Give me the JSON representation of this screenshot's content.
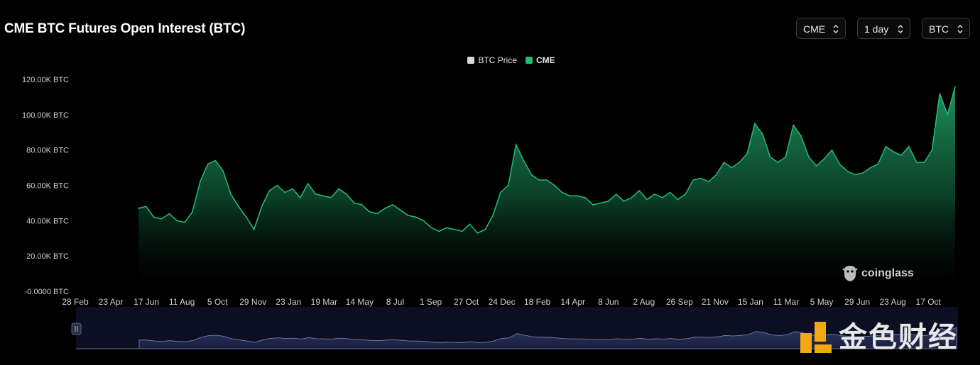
{
  "header": {
    "title": "CME BTC Futures Open Interest (BTC)",
    "exchange_select": "CME",
    "interval_select": "1 day",
    "unit_select": "BTC"
  },
  "legend": [
    {
      "label": "BTC Price",
      "color": "#d9d9d9"
    },
    {
      "label": "CME",
      "color": "#1fbf75"
    }
  ],
  "watermarks": {
    "coinglass": "coinglass",
    "jinse": "金色财经"
  },
  "colors": {
    "background": "#000000",
    "accent": "#1fbf75",
    "navigator_fill": "#2c3358"
  },
  "chart_data": {
    "type": "area",
    "title": "CME BTC Futures Open Interest (BTC)",
    "series": [
      {
        "name": "CME",
        "values": [
          47,
          48,
          42,
          41,
          44,
          40,
          39,
          45,
          62,
          72,
          74,
          68,
          55,
          48,
          42,
          35,
          48,
          57,
          60,
          56,
          58,
          53,
          61,
          55,
          54,
          53,
          58,
          55,
          50,
          49,
          45,
          44,
          47,
          49,
          46,
          43,
          42,
          40,
          36,
          34,
          36,
          35,
          34,
          38,
          33,
          35,
          43,
          56,
          60,
          83,
          74,
          66,
          63,
          63,
          60,
          56,
          54,
          54,
          53,
          49,
          50,
          51,
          55,
          51,
          53,
          57,
          52,
          55,
          53,
          56,
          52,
          55,
          63,
          64,
          62,
          66,
          73,
          70,
          73,
          78,
          95,
          89,
          76,
          73,
          76,
          94,
          88,
          76,
          71,
          75,
          80,
          72,
          68,
          66,
          67,
          70,
          72,
          82,
          79,
          77,
          82,
          73,
          73,
          80,
          112,
          100,
          116
        ]
      }
    ],
    "x_tick_labels": [
      "28 Feb",
      "23 Apr",
      "17 Jun",
      "11 Aug",
      "5 Oct",
      "29 Nov",
      "23 Jan",
      "19 Mar",
      "14 May",
      "8 Jul",
      "1 Sep",
      "27 Oct",
      "24 Dec",
      "18 Feb",
      "14 Apr",
      "8 Jun",
      "2 Aug",
      "26 Sep",
      "21 Nov",
      "15 Jan",
      "11 Mar",
      "5 May",
      "29 Jun",
      "23 Aug",
      "17 Oct"
    ],
    "y_tick_labels": [
      "-0.0000 BTC",
      "20.00K BTC",
      "40.00K BTC",
      "60.00K BTC",
      "80.00K BTC",
      "100.00K BTC",
      "120.00K BTC"
    ],
    "ylim": [
      0,
      120
    ],
    "y_unit": "K BTC",
    "grid": false,
    "legend_position": "top-center"
  }
}
